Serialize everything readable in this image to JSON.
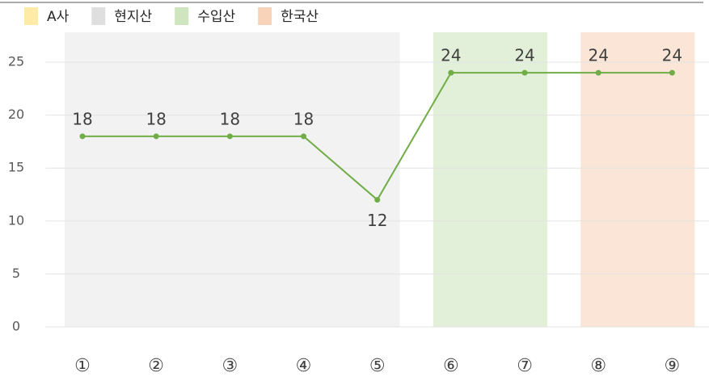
{
  "chart_data": {
    "type": "line",
    "categories": [
      "①",
      "②",
      "③",
      "④",
      "⑤",
      "⑥",
      "⑦",
      "⑧",
      "⑨"
    ],
    "series": [
      {
        "name": "A사",
        "color": "#70ad47",
        "legend_color": "#ffe699",
        "values": [
          18,
          18,
          18,
          18,
          12,
          24,
          24,
          24,
          24
        ]
      }
    ],
    "bands": [
      {
        "name": "현지산",
        "color": "#d9d9d9",
        "from": 0,
        "to": 4
      },
      {
        "name": "수입산",
        "color": "#c5e0b4",
        "from": 5,
        "to": 6
      },
      {
        "name": "한국산",
        "color": "#f8cbad",
        "from": 7,
        "to": 8
      }
    ],
    "ylim": [
      0,
      25
    ],
    "yticks": [
      0,
      5,
      10,
      15,
      20,
      25
    ],
    "grid": true
  }
}
